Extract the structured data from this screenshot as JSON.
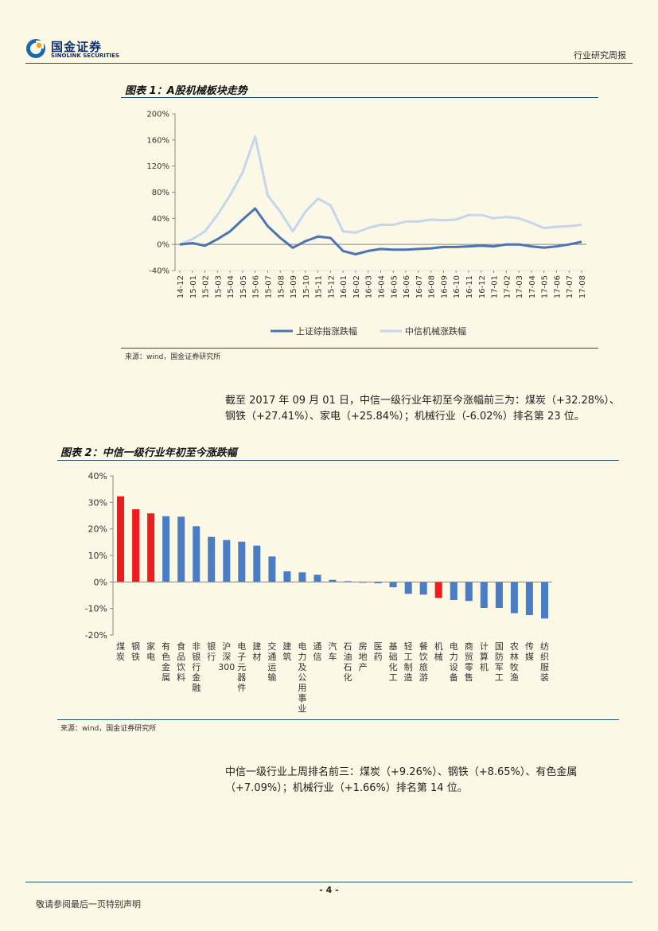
{
  "header": {
    "logo_cn": "国金证券",
    "logo_en": "SINOLINK SECURITIES",
    "report_type": "行业研究周报"
  },
  "figure1": {
    "title": "图表 1：A股机械板块走势",
    "source": "来源：wind，国金证券研究所"
  },
  "paragraph1": "截至 2017 年 09 月 01 日，中信一级行业年初至今涨幅前三为：煤炭（+32.28%）、钢铁（+27.41%）、家电（+25.84%）；机械行业（-6.02%）排名第 23 位。",
  "figure2": {
    "title": "图表 2：中信一级行业年初至今涨跌幅",
    "source": "来源：wind，国金证券研究所"
  },
  "paragraph2": "中信一级行业上周排名前三：煤炭（+9.26%）、钢铁（+8.65%）、有色金属（+7.09%）；机械行业（+1.66%）排名第 14 位。",
  "footer": {
    "page": "- 4 -",
    "note": "敬请参阅最后一页特别声明"
  },
  "chart_data": [
    {
      "type": "line",
      "title": "",
      "ylim": [
        -40,
        200
      ],
      "yticks": [
        "-40%",
        "0%",
        "40%",
        "80%",
        "120%",
        "160%",
        "200%"
      ],
      "ytick_values": [
        -40,
        0,
        40,
        80,
        120,
        160,
        200
      ],
      "x": [
        "14-12",
        "15-01",
        "15-02",
        "15-03",
        "15-04",
        "15-05",
        "15-06",
        "15-07",
        "15-08",
        "15-09",
        "15-10",
        "15-11",
        "15-12",
        "16-01",
        "16-02",
        "16-03",
        "16-04",
        "16-05",
        "16-06",
        "16-07",
        "16-08",
        "16-09",
        "16-10",
        "16-11",
        "16-12",
        "17-01",
        "17-02",
        "17-03",
        "17-04",
        "17-05",
        "17-06",
        "17-07",
        "17-08"
      ],
      "series": [
        {
          "name": "上证综指涨跌幅",
          "color": "#4a74b4",
          "values": [
            0,
            2,
            -2,
            8,
            20,
            38,
            55,
            28,
            10,
            -5,
            5,
            12,
            10,
            -10,
            -15,
            -10,
            -7,
            -8,
            -8,
            -7,
            -6,
            -4,
            -4,
            -3,
            -2,
            -3,
            0,
            0,
            -3,
            -5,
            -3,
            0,
            4
          ]
        },
        {
          "name": "中信机械涨跌幅",
          "color": "#c5d6ee",
          "values": [
            0,
            8,
            20,
            45,
            75,
            110,
            165,
            75,
            50,
            20,
            50,
            70,
            60,
            20,
            18,
            25,
            30,
            30,
            35,
            35,
            38,
            37,
            38,
            45,
            45,
            40,
            42,
            40,
            33,
            25,
            27,
            28,
            30
          ]
        }
      ],
      "legend": "bottom"
    },
    {
      "type": "bar",
      "title": "",
      "ylim": [
        -20,
        40
      ],
      "yticks": [
        "-20%",
        "-10%",
        "0%",
        "10%",
        "20%",
        "30%",
        "40%"
      ],
      "ytick_values": [
        -20,
        -10,
        0,
        10,
        20,
        30,
        40
      ],
      "categories": [
        "煤炭",
        "钢铁",
        "家电",
        "有色金属",
        "食品饮料",
        "非银行金融",
        "银行",
        "沪深300",
        "电子元器件",
        "建材",
        "交通运输",
        "建筑",
        "电力及公用事业",
        "通信",
        "汽车",
        "石油石化",
        "房地产",
        "医药",
        "基础化工",
        "轻工制造",
        "餐饮旅游",
        "机械",
        "电力设备",
        "商贸零售",
        "计算机",
        "国防军工",
        "农林牧渔",
        "传媒",
        "纺织服装"
      ],
      "values": [
        32.28,
        27.41,
        25.84,
        24.8,
        24.6,
        21.0,
        17.0,
        15.8,
        15.2,
        13.7,
        9.6,
        4.0,
        3.6,
        2.7,
        0.8,
        0.3,
        -0.3,
        -0.5,
        -2.0,
        -4.5,
        -4.8,
        -6.02,
        -6.8,
        -7.2,
        -9.8,
        -9.8,
        -11.8,
        -12.5,
        -13.8
      ],
      "highlight": [
        "煤炭",
        "钢铁",
        "家电",
        "机械"
      ],
      "colors": {
        "default": "#4a7dc4",
        "highlight": "#ee1c1c"
      }
    }
  ]
}
